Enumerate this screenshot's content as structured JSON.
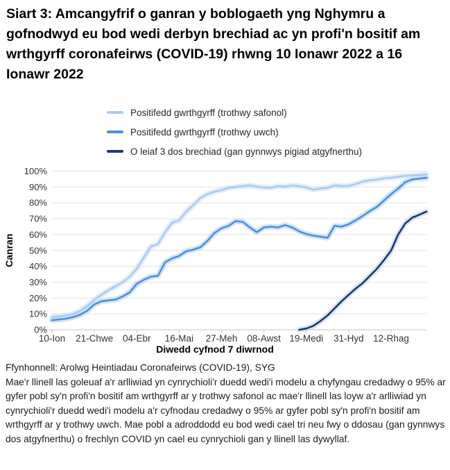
{
  "title": "Siart 3: Amcangyfrif o ganran y boblogaeth yng Nghymru a gofnodwyd eu bod wedi derbyn brechiad ac yn profi'n bositif am wrthgyrff coronafeirws (COVID-19) rhwng 10 Ionawr 2022 a 16 Ionawr 2022",
  "legend": [
    {
      "label": "Positifedd gwrthgyrff (trothwy safonol)",
      "color": "#a9cbf0"
    },
    {
      "label": "Positifedd gwrthgyrff (trothwy uwch)",
      "color": "#4a90e2"
    },
    {
      "label": "O leiaf 3 dos brechiad (gan gynnwys pigiad atgyfnerthu)",
      "color": "#1e3a66"
    }
  ],
  "chart_data": {
    "type": "line",
    "title": "",
    "xlabel": "Diwedd cyfnod 7 diwrnod",
    "ylabel": "Canran",
    "ylim": [
      0,
      100
    ],
    "grid": true,
    "legend_position": "top",
    "y_tick_labels": [
      "0%",
      "10%",
      "20%",
      "30%",
      "40%",
      "50%",
      "60%",
      "70%",
      "80%",
      "90%",
      "100%"
    ],
    "x_tick_labels": [
      "10-Ion",
      "21-Chwe",
      "04-Ebr",
      "16-Mai",
      "27-Meh",
      "08-Awst",
      "19-Medi",
      "31-Hyd",
      "12-Rhag"
    ],
    "x_tick_weeks": [
      0,
      6,
      12,
      18,
      24,
      30,
      36,
      42,
      48
    ],
    "x_unit": "wythnos (10 Ionawr 2021 - 16 Ionawr 2022)",
    "series": [
      {
        "name": "Positifedd gwrthgyrff (trothwy safonol)",
        "color": "#a9cbf0",
        "band_color": "#d9e7f8",
        "values": [
          8,
          8.5,
          9,
          10,
          12,
          15,
          19,
          22,
          25,
          27.5,
          30,
          33.5,
          38.5,
          45.5,
          52.5,
          54,
          61.5,
          67.5,
          69,
          74.5,
          78.5,
          83,
          85.5,
          87,
          88,
          89.5,
          90,
          90.5,
          91,
          90.2,
          89.7,
          89.5,
          90.5,
          90.2,
          91,
          90.5,
          89.7,
          88.3,
          89,
          89.5,
          91,
          90.5,
          90.7,
          91.8,
          93.4,
          94.2,
          94.6,
          95.5,
          95.8,
          96.5,
          97,
          97.3,
          97.6,
          98
        ]
      },
      {
        "name": "Positifedd gwrthgyrff (trothwy uwch)",
        "color": "#4a90e2",
        "band_color": "#c3daf4",
        "values": [
          6,
          6.5,
          7,
          8,
          9.5,
          12,
          16,
          18,
          18.5,
          19,
          21,
          23.5,
          29,
          31.5,
          33.5,
          34,
          42.5,
          45,
          46.5,
          49.5,
          50.5,
          52,
          56,
          61,
          64,
          65.5,
          68.5,
          68,
          64.5,
          61.5,
          64.5,
          65,
          64.5,
          66,
          64.5,
          62,
          60.3,
          59.3,
          58.7,
          58,
          65.5,
          65,
          66.5,
          69,
          71.8,
          74.8,
          77.5,
          81.5,
          85.5,
          89,
          93,
          94.8,
          95.3,
          95.8
        ]
      },
      {
        "name": "O leiaf 3 dos brechiad (gan gynnwys pigiad atgyfnerthu)",
        "color": "#1e3a66",
        "band_color": "#ccdaf0",
        "values": [
          null,
          null,
          null,
          null,
          null,
          null,
          null,
          null,
          null,
          null,
          null,
          null,
          null,
          null,
          null,
          null,
          null,
          null,
          null,
          null,
          null,
          null,
          null,
          null,
          null,
          null,
          null,
          null,
          null,
          null,
          null,
          null,
          null,
          null,
          null,
          0,
          0.8,
          2.5,
          5.5,
          9,
          13.5,
          18,
          22,
          26,
          29.5,
          34,
          38.5,
          44,
          50,
          60,
          67,
          70.7,
          72.5,
          74.5
        ]
      }
    ]
  },
  "footer": {
    "source": "Ffynhonnell: Arolwg Heintiadau Coronafeirws (COVID-19), SYG",
    "note": "Mae'r llinell las goleuaf a'r arlliwiad yn cynrychioli'r duedd wedi'i modelu a chyfyngau credadwy o 95% ar gyfer pobl sy'n profi'n bositif am wrthgyrff ar y trothwy safonol ac mae'r llinell las loyw a'r arlliwiad yn cynrychioli'r duedd wedi'i modelu a'r cyfnodau credadwy o 95% ar gyfer pobl sy'n profi'n bositif am wrthgyrff ar y trothwy uwch. Mae pobl a adroddodd eu bod wedi cael tri neu fwy o ddosau (gan gynnwys dos atgyfnerthu) o frechlyn COVID yn cael eu cynrychioli gan y llinell las dywyllaf."
  }
}
